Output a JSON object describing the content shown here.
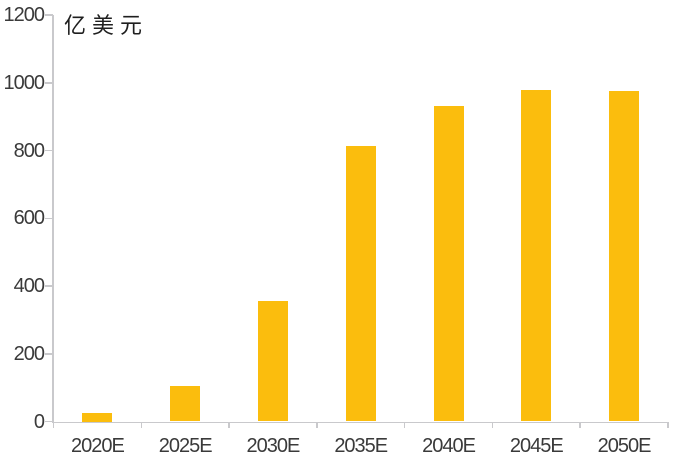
{
  "chart_data": {
    "type": "bar",
    "title": "",
    "unit_label": "亿美元",
    "categories": [
      "2020E",
      "2025E",
      "2030E",
      "2035E",
      "2040E",
      "2045E",
      "2050E"
    ],
    "values": [
      25,
      105,
      357,
      812,
      932,
      980,
      977
    ],
    "xlabel": "",
    "ylabel": "亿美元",
    "ylim": [
      0,
      1200
    ],
    "y_ticks": [
      0,
      200,
      400,
      600,
      800,
      1000,
      1200
    ],
    "grid": false,
    "legend_position": "none",
    "colors": {
      "bar": "#FBBD0D",
      "axis": "#C9C9CC",
      "tick_label": "#3A3A3A",
      "unit_label": "#1F1F1F",
      "background": "#FFFFFF"
    }
  }
}
